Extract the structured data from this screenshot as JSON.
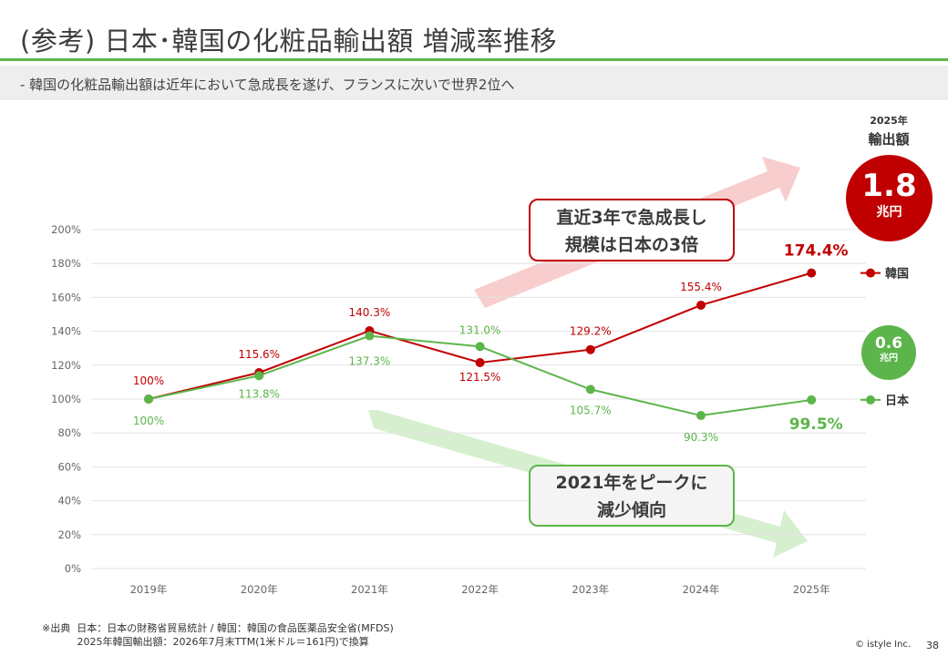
{
  "title": "(参考) 日本･韓国の化粧品輸出額 増減率推移",
  "subtitle": "‐  韓国の化粧品輸出額は近年において急成長を遂げ、フランスに次いで世界2位へ",
  "colors": {
    "accent": "#5cb54a",
    "korea": "#c00000",
    "japan": "#5cb54a"
  },
  "callouts": {
    "korea_line1": "直近3年で急成長し",
    "korea_line2": "規模は日本の3倍",
    "japan_line1": "2021年をピークに",
    "japan_line2": "減少傾向"
  },
  "export": {
    "year": "2025年",
    "label": "輸出額",
    "korea_value": "1.8",
    "korea_unit": "兆円",
    "japan_value": "0.6",
    "japan_unit": "兆円"
  },
  "chart_data": {
    "type": "line",
    "categories": [
      "2019年",
      "2020年",
      "2021年",
      "2022年",
      "2023年",
      "2024年",
      "2025年"
    ],
    "ylim": [
      0,
      200
    ],
    "yticks": [
      "0%",
      "20%",
      "40%",
      "60%",
      "80%",
      "100%",
      "120%",
      "140%",
      "160%",
      "180%",
      "200%"
    ],
    "grid": true,
    "legend_position": "right",
    "series": [
      {
        "name": "韓国",
        "color": "#c00000",
        "values": [
          100,
          115.6,
          140.3,
          121.5,
          129.2,
          155.4,
          174.4
        ],
        "labels": [
          "100%",
          "115.6%",
          "140.3%",
          "121.5%",
          "129.2%",
          "155.4%",
          "174.4%"
        ]
      },
      {
        "name": "日本",
        "color": "#5cb54a",
        "values": [
          100,
          113.8,
          137.3,
          131.0,
          105.7,
          90.3,
          99.5
        ],
        "labels": [
          "100%",
          "113.8%",
          "137.3%",
          "131.0%",
          "105.7%",
          "90.3%",
          "99.5%"
        ]
      }
    ]
  },
  "footnote": {
    "line1": "※出典  日本：日本の財務省貿易統計 / 韓国：韓国の食品医薬品安全省(MFDS)",
    "line2": "           2025年韓国輸出額：2026年7月末TTM(1米ドル＝161円)で換算"
  },
  "copyright": "© istyle Inc.",
  "page_number": "38"
}
